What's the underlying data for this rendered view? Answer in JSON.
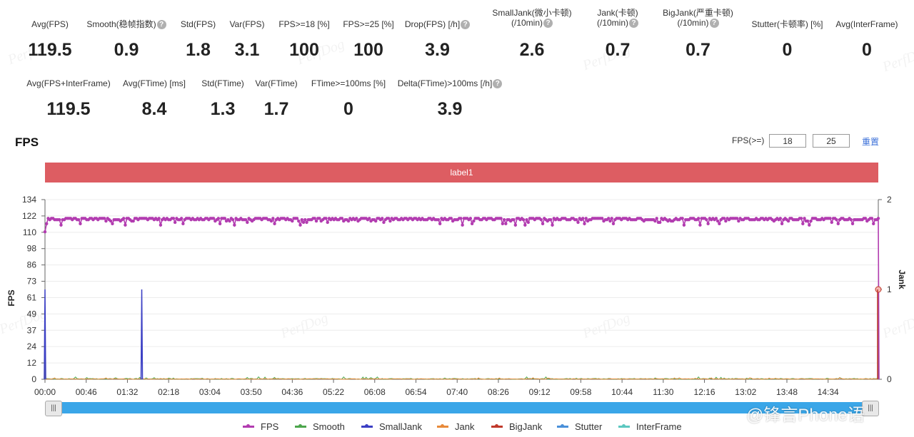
{
  "stats_row1": [
    {
      "label": "Avg(FPS)",
      "value": "119.5",
      "help": false
    },
    {
      "label": "Smooth(稳帧指数)",
      "value": "0.9",
      "help": true
    },
    {
      "label": "Std(FPS)",
      "value": "1.8",
      "help": false
    },
    {
      "label": "Var(FPS)",
      "value": "3.1",
      "help": false
    },
    {
      "label": "FPS>=18 [%]",
      "value": "100",
      "help": false
    },
    {
      "label": "FPS>=25 [%]",
      "value": "100",
      "help": false
    },
    {
      "label": "Drop(FPS) [/h]",
      "value": "3.9",
      "help": true
    },
    {
      "label": "SmallJank(微小卡顿)",
      "label2": "(/10min)",
      "value": "2.6",
      "help": true
    },
    {
      "label": "Jank(卡顿)",
      "label2": "(/10min)",
      "value": "0.7",
      "help": true
    },
    {
      "label": "BigJank(严重卡顿)",
      "label2": "(/10min)",
      "value": "0.7",
      "help": true
    },
    {
      "label": "Stutter(卡顿率) [%]",
      "value": "0",
      "help": false
    },
    {
      "label": "Avg(InterFrame)",
      "value": "0",
      "help": false
    }
  ],
  "stats_row2": [
    {
      "label": "Avg(FPS+InterFrame)",
      "value": "119.5",
      "help": false
    },
    {
      "label": "Avg(FTime) [ms]",
      "value": "8.4",
      "help": false
    },
    {
      "label": "Std(FTime)",
      "value": "1.3",
      "help": false
    },
    {
      "label": "Var(FTime)",
      "value": "1.7",
      "help": false
    },
    {
      "label": "FTime>=100ms [%]",
      "value": "0",
      "help": false
    },
    {
      "label": "Delta(FTime)>100ms [/h]",
      "value": "3.9",
      "help": true
    }
  ],
  "help_glyph": "?",
  "section_title": "FPS",
  "fps_filter": {
    "label": "FPS(>=)",
    "value1": "18",
    "value2": "25",
    "reset_label": "重置"
  },
  "label_bar": "label1",
  "watermark": "PerfDog",
  "weibo_watermark": "@锋言Phone语",
  "slider_grip": "|||",
  "colors": {
    "fps": "#b23cb0",
    "smooth": "#4ca64c",
    "smalljank": "#3b3fc4",
    "jank": "#e88a3a",
    "bigjank": "#c0392b",
    "stutter": "#4a90d9",
    "interframe": "#5cc8c0",
    "labelbar": "#dd5d62",
    "slider": "#3aa6e8"
  },
  "chart_data": {
    "type": "line",
    "xlabel": "",
    "ylabel": "FPS",
    "y2label": "Jank",
    "ylim": [
      0,
      134
    ],
    "y2lim": [
      0,
      2
    ],
    "yticks": [
      "0",
      "12",
      "24",
      "37",
      "49",
      "61",
      "73",
      "86",
      "98",
      "110",
      "122",
      "134"
    ],
    "y2ticks": [
      "0",
      "1",
      "2"
    ],
    "xticks": [
      "00:00",
      "00:46",
      "01:32",
      "02:18",
      "03:04",
      "03:50",
      "04:36",
      "05:22",
      "06:08",
      "06:54",
      "07:40",
      "08:26",
      "09:12",
      "09:58",
      "10:44",
      "11:30",
      "12:16",
      "13:02",
      "13:48",
      "14:34"
    ],
    "x_minutes_range": [
      0,
      15.5
    ],
    "fps_typical": 120,
    "fps_low_dips": [
      117,
      116,
      115
    ],
    "fps_start": [
      110,
      116,
      120
    ],
    "fps_end_drop_to": 0,
    "small_jank_spikes": [
      {
        "time": "00:00",
        "value": 67
      },
      {
        "time": "01:48",
        "value": 67
      }
    ],
    "jank_marker": {
      "value": 1
    },
    "grid": true,
    "legend_position": "bottom",
    "series": [
      {
        "name": "FPS"
      },
      {
        "name": "Smooth"
      },
      {
        "name": "SmallJank"
      },
      {
        "name": "Jank"
      },
      {
        "name": "BigJank"
      },
      {
        "name": "Stutter"
      },
      {
        "name": "InterFrame"
      }
    ]
  }
}
